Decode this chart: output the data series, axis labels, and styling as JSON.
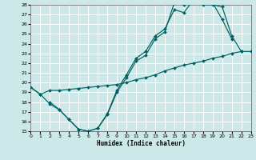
{
  "xlabel": "Humidex (Indice chaleur)",
  "background_color": "#cce8e8",
  "grid_color": "#ffffff",
  "line_color": "#006060",
  "xlim": [
    0,
    23
  ],
  "ylim": [
    15,
    28
  ],
  "xticks": [
    0,
    1,
    2,
    3,
    4,
    5,
    6,
    7,
    8,
    9,
    10,
    11,
    12,
    13,
    14,
    15,
    16,
    17,
    18,
    19,
    20,
    21,
    22,
    23
  ],
  "yticks": [
    15,
    16,
    17,
    18,
    19,
    20,
    21,
    22,
    23,
    24,
    25,
    26,
    27,
    28
  ],
  "lineA_x": [
    0,
    1,
    2,
    3,
    4,
    5,
    6,
    7,
    8,
    9,
    10,
    11,
    12,
    13,
    14,
    15,
    16,
    17,
    18,
    19,
    20,
    21,
    22
  ],
  "lineA_y": [
    19.5,
    18.8,
    17.8,
    17.2,
    16.2,
    15.2,
    15.0,
    15.3,
    16.7,
    19.0,
    20.5,
    22.2,
    22.8,
    24.5,
    25.2,
    28.2,
    28.0,
    28.5,
    28.0,
    28.0,
    27.8,
    24.8,
    23.2
  ],
  "lineB_x": [
    2,
    3,
    4,
    5,
    6,
    7,
    8,
    9,
    10,
    11,
    12,
    13,
    14,
    15,
    16,
    17,
    18,
    19,
    20,
    21
  ],
  "lineB_y": [
    18.0,
    17.2,
    16.2,
    15.2,
    15.0,
    15.3,
    16.8,
    19.2,
    20.8,
    22.5,
    23.2,
    24.8,
    25.5,
    27.5,
    27.2,
    28.5,
    28.2,
    28.2,
    26.5,
    24.5
  ],
  "lineC_x": [
    0,
    1,
    2,
    3,
    4,
    5,
    6,
    7,
    8,
    9,
    10,
    11,
    12,
    13,
    14,
    15,
    16,
    17,
    18,
    19,
    20,
    21,
    22,
    23
  ],
  "lineC_y": [
    19.5,
    18.8,
    19.2,
    19.2,
    19.3,
    19.4,
    19.5,
    19.6,
    19.7,
    19.8,
    20.0,
    20.3,
    20.5,
    20.8,
    21.2,
    21.5,
    21.8,
    22.0,
    22.2,
    22.5,
    22.7,
    23.0,
    23.2,
    23.2
  ]
}
